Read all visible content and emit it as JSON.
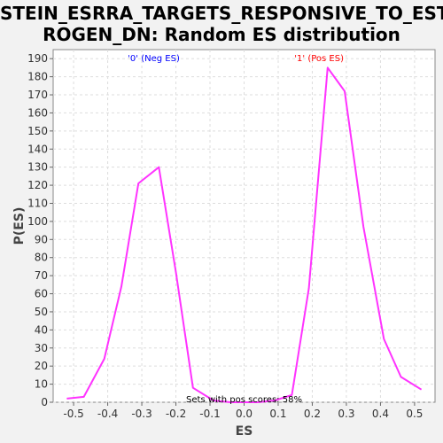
{
  "title_line1": "STEIN_ESRRA_TARGETS_RESPONSIVE_TO_EST",
  "title_line2": "ROGEN_DN: Random ES distribution",
  "chart_data": {
    "type": "line",
    "title": "STEIN_ESRRA_TARGETS_RESPONSIVE_TO_ESTROGEN_DN: Random ES distribution",
    "xlabel": "ES",
    "ylabel": "P(ES)",
    "xlim": [
      -0.56,
      0.56
    ],
    "ylim": [
      0,
      195
    ],
    "xticks": [
      -0.5,
      -0.4,
      -0.3,
      -0.2,
      -0.1,
      0.0,
      0.1,
      0.2,
      0.3,
      0.4,
      0.5
    ],
    "xtick_labels": [
      "-0.5",
      "-0.4",
      "-0.3",
      "-0.2",
      "-0.1",
      "0.0",
      "0.1",
      "0.2",
      "0.3",
      "0.4",
      "0.5"
    ],
    "yticks": [
      0,
      10,
      20,
      30,
      40,
      50,
      60,
      70,
      80,
      90,
      100,
      110,
      120,
      130,
      140,
      150,
      160,
      170,
      180,
      190
    ],
    "grid": true,
    "series": [
      {
        "color": "#ff33ff",
        "x": [
          -0.52,
          -0.47,
          -0.41,
          -0.36,
          -0.31,
          -0.25,
          -0.2,
          -0.15,
          -0.09,
          -0.04,
          0.0,
          0.04,
          0.09,
          0.14,
          0.19,
          0.245,
          0.295,
          0.35,
          0.41,
          0.46,
          0.52
        ],
        "y": [
          2,
          3,
          24,
          64,
          121,
          130,
          72,
          8,
          1,
          0,
          0,
          0,
          1,
          4,
          63,
          185,
          172,
          97,
          35,
          14,
          7
        ]
      }
    ],
    "annotations": [
      {
        "text": "'0' (Neg ES)",
        "color": "#0000ff",
        "x": -0.265
      },
      {
        "text": "'1' (Pos ES)",
        "color": "#ff0000",
        "x": 0.22
      },
      {
        "text": "Sets with pos scores: 58%",
        "color": "#000000",
        "x": 0.0
      }
    ]
  }
}
